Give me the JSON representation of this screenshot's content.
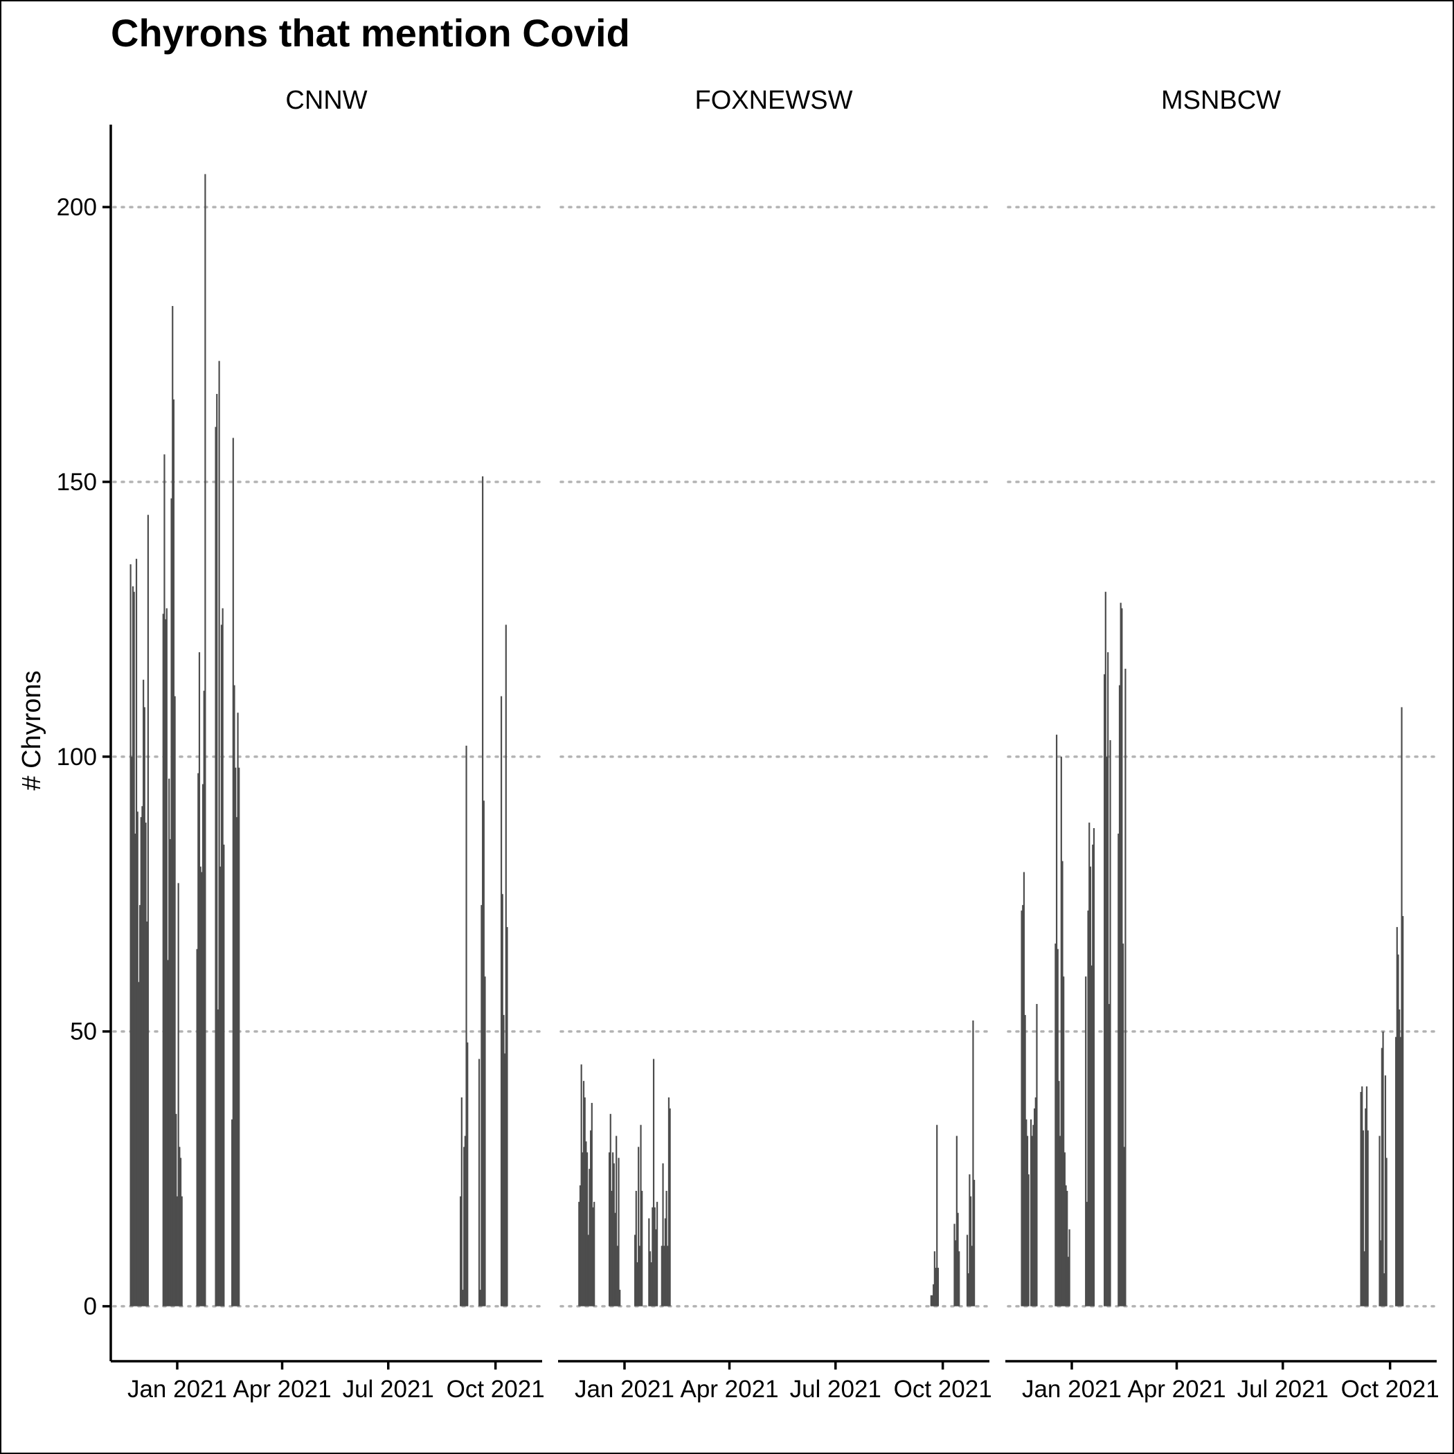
{
  "chart_data": {
    "type": "bar",
    "title": "Chyrons that mention Covid",
    "xlabel": "",
    "ylabel": "# Chyrons",
    "ylim": [
      -10,
      215
    ],
    "yticks": [
      0,
      50,
      100,
      150,
      200
    ],
    "xlim": [
      "2020-11-05",
      "2021-11-10"
    ],
    "xticks": [
      {
        "date": "2021-01-01",
        "label": "Jan 2021"
      },
      {
        "date": "2021-04-01",
        "label": "Apr 2021"
      },
      {
        "date": "2021-07-01",
        "label": "Jul 2021"
      },
      {
        "date": "2021-10-01",
        "label": "Oct 2021"
      }
    ],
    "grid": "horizontal dotted",
    "legend": "none",
    "bar_color": "#4d4d4d",
    "series": [
      {
        "name": "CNNW",
        "data": [
          [
            "2020-11-22",
            135
          ],
          [
            "2020-11-23",
            100
          ],
          [
            "2020-11-24",
            131
          ],
          [
            "2020-11-25",
            130
          ],
          [
            "2020-11-26",
            86
          ],
          [
            "2020-11-27",
            136
          ],
          [
            "2020-11-28",
            90
          ],
          [
            "2020-11-29",
            59
          ],
          [
            "2020-11-30",
            73
          ],
          [
            "2020-12-01",
            89
          ],
          [
            "2020-12-02",
            91
          ],
          [
            "2020-12-03",
            114
          ],
          [
            "2020-12-04",
            109
          ],
          [
            "2020-12-05",
            88
          ],
          [
            "2020-12-06",
            70
          ],
          [
            "2020-12-07",
            144
          ],
          [
            "2020-12-20",
            126
          ],
          [
            "2020-12-21",
            155
          ],
          [
            "2020-12-22",
            125
          ],
          [
            "2020-12-23",
            127
          ],
          [
            "2020-12-24",
            63
          ],
          [
            "2020-12-25",
            96
          ],
          [
            "2020-12-26",
            85
          ],
          [
            "2020-12-27",
            147
          ],
          [
            "2020-12-28",
            182
          ],
          [
            "2020-12-29",
            165
          ],
          [
            "2020-12-30",
            111
          ],
          [
            "2020-12-31",
            35
          ],
          [
            "2021-01-01",
            20
          ],
          [
            "2021-01-02",
            77
          ],
          [
            "2021-01-03",
            29
          ],
          [
            "2021-01-04",
            27
          ],
          [
            "2021-01-05",
            20
          ],
          [
            "2021-01-18",
            65
          ],
          [
            "2021-01-19",
            97
          ],
          [
            "2021-01-20",
            119
          ],
          [
            "2021-01-21",
            80
          ],
          [
            "2021-01-22",
            79
          ],
          [
            "2021-01-23",
            95
          ],
          [
            "2021-01-24",
            112
          ],
          [
            "2021-01-25",
            206
          ],
          [
            "2021-02-03",
            160
          ],
          [
            "2021-02-04",
            166
          ],
          [
            "2021-02-05",
            54
          ],
          [
            "2021-02-06",
            172
          ],
          [
            "2021-02-07",
            80
          ],
          [
            "2021-02-08",
            124
          ],
          [
            "2021-02-09",
            127
          ],
          [
            "2021-02-10",
            84
          ],
          [
            "2021-02-17",
            34
          ],
          [
            "2021-02-18",
            158
          ],
          [
            "2021-02-19",
            113
          ],
          [
            "2021-02-20",
            98
          ],
          [
            "2021-02-21",
            89
          ],
          [
            "2021-02-22",
            108
          ],
          [
            "2021-02-23",
            98
          ],
          [
            "2021-09-01",
            20
          ],
          [
            "2021-09-02",
            38
          ],
          [
            "2021-09-03",
            3
          ],
          [
            "2021-09-04",
            29
          ],
          [
            "2021-09-05",
            31
          ],
          [
            "2021-09-06",
            102
          ],
          [
            "2021-09-07",
            48
          ],
          [
            "2021-09-17",
            45
          ],
          [
            "2021-09-18",
            3
          ],
          [
            "2021-09-19",
            73
          ],
          [
            "2021-09-20",
            151
          ],
          [
            "2021-09-21",
            92
          ],
          [
            "2021-09-22",
            60
          ],
          [
            "2021-10-06",
            111
          ],
          [
            "2021-10-07",
            75
          ],
          [
            "2021-10-08",
            53
          ],
          [
            "2021-10-09",
            46
          ],
          [
            "2021-10-10",
            124
          ],
          [
            "2021-10-11",
            69
          ]
        ]
      },
      {
        "name": "FOXNEWSW",
        "data": [
          [
            "2020-11-23",
            19
          ],
          [
            "2020-11-24",
            22
          ],
          [
            "2020-11-25",
            44
          ],
          [
            "2020-11-26",
            28
          ],
          [
            "2020-11-27",
            41
          ],
          [
            "2020-11-28",
            38
          ],
          [
            "2020-11-29",
            30
          ],
          [
            "2020-11-30",
            28
          ],
          [
            "2020-12-01",
            13
          ],
          [
            "2020-12-02",
            25
          ],
          [
            "2020-12-03",
            32
          ],
          [
            "2020-12-04",
            37
          ],
          [
            "2020-12-05",
            18
          ],
          [
            "2020-12-06",
            19
          ],
          [
            "2020-12-19",
            28
          ],
          [
            "2020-12-20",
            35
          ],
          [
            "2020-12-21",
            21
          ],
          [
            "2020-12-22",
            28
          ],
          [
            "2020-12-23",
            26
          ],
          [
            "2020-12-24",
            17
          ],
          [
            "2020-12-25",
            31
          ],
          [
            "2020-12-26",
            11
          ],
          [
            "2020-12-27",
            27
          ],
          [
            "2020-12-28",
            3
          ],
          [
            "2021-01-10",
            13
          ],
          [
            "2021-01-11",
            21
          ],
          [
            "2021-01-12",
            8
          ],
          [
            "2021-01-13",
            29
          ],
          [
            "2021-01-14",
            11
          ],
          [
            "2021-01-15",
            33
          ],
          [
            "2021-01-16",
            21
          ],
          [
            "2021-01-22",
            16
          ],
          [
            "2021-01-23",
            10
          ],
          [
            "2021-01-24",
            8
          ],
          [
            "2021-01-25",
            18
          ],
          [
            "2021-01-26",
            45
          ],
          [
            "2021-01-27",
            18
          ],
          [
            "2021-01-28",
            14
          ],
          [
            "2021-01-29",
            19
          ],
          [
            "2021-02-02",
            11
          ],
          [
            "2021-02-03",
            26
          ],
          [
            "2021-02-04",
            11
          ],
          [
            "2021-02-05",
            16
          ],
          [
            "2021-02-06",
            21
          ],
          [
            "2021-02-07",
            11
          ],
          [
            "2021-02-08",
            38
          ],
          [
            "2021-02-09",
            36
          ],
          [
            "2021-09-21",
            2
          ],
          [
            "2021-09-22",
            2
          ],
          [
            "2021-09-23",
            4
          ],
          [
            "2021-09-24",
            10
          ],
          [
            "2021-09-25",
            7
          ],
          [
            "2021-09-26",
            33
          ],
          [
            "2021-09-27",
            7
          ],
          [
            "2021-10-11",
            15
          ],
          [
            "2021-10-12",
            12
          ],
          [
            "2021-10-13",
            31
          ],
          [
            "2021-10-14",
            17
          ],
          [
            "2021-10-15",
            10
          ],
          [
            "2021-10-22",
            13
          ],
          [
            "2021-10-23",
            6
          ],
          [
            "2021-10-24",
            24
          ],
          [
            "2021-10-25",
            20
          ],
          [
            "2021-10-26",
            11
          ],
          [
            "2021-10-27",
            52
          ],
          [
            "2021-10-28",
            23
          ]
        ]
      },
      {
        "name": "MSNBCW",
        "data": [
          [
            "2020-11-19",
            72
          ],
          [
            "2020-11-20",
            73
          ],
          [
            "2020-11-21",
            79
          ],
          [
            "2020-11-22",
            53
          ],
          [
            "2020-11-23",
            34
          ],
          [
            "2020-11-24",
            31
          ],
          [
            "2020-11-25",
            24
          ],
          [
            "2020-11-27",
            34
          ],
          [
            "2020-11-28",
            31
          ],
          [
            "2020-11-29",
            33
          ],
          [
            "2020-11-30",
            36
          ],
          [
            "2020-12-01",
            38
          ],
          [
            "2020-12-02",
            55
          ],
          [
            "2020-12-18",
            66
          ],
          [
            "2020-12-19",
            104
          ],
          [
            "2020-12-20",
            65
          ],
          [
            "2020-12-21",
            41
          ],
          [
            "2020-12-22",
            31
          ],
          [
            "2020-12-23",
            100
          ],
          [
            "2020-12-24",
            81
          ],
          [
            "2020-12-25",
            60
          ],
          [
            "2020-12-26",
            28
          ],
          [
            "2020-12-27",
            22
          ],
          [
            "2020-12-28",
            21
          ],
          [
            "2020-12-29",
            9
          ],
          [
            "2020-12-30",
            14
          ],
          [
            "2021-01-13",
            60
          ],
          [
            "2021-01-14",
            19
          ],
          [
            "2021-01-15",
            72
          ],
          [
            "2021-01-16",
            88
          ],
          [
            "2021-01-17",
            80
          ],
          [
            "2021-01-18",
            62
          ],
          [
            "2021-01-19",
            84
          ],
          [
            "2021-01-20",
            87
          ],
          [
            "2021-01-29",
            115
          ],
          [
            "2021-01-30",
            130
          ],
          [
            "2021-01-31",
            100
          ],
          [
            "2021-02-01",
            119
          ],
          [
            "2021-02-02",
            55
          ],
          [
            "2021-02-03",
            103
          ],
          [
            "2021-02-10",
            86
          ],
          [
            "2021-02-11",
            113
          ],
          [
            "2021-02-12",
            128
          ],
          [
            "2021-02-13",
            127
          ],
          [
            "2021-02-14",
            66
          ],
          [
            "2021-02-15",
            29
          ],
          [
            "2021-02-16",
            116
          ],
          [
            "2021-09-06",
            39
          ],
          [
            "2021-09-07",
            40
          ],
          [
            "2021-09-08",
            32
          ],
          [
            "2021-09-09",
            10
          ],
          [
            "2021-09-10",
            36
          ],
          [
            "2021-09-11",
            40
          ],
          [
            "2021-09-12",
            32
          ],
          [
            "2021-09-22",
            31
          ],
          [
            "2021-09-23",
            12
          ],
          [
            "2021-09-24",
            47
          ],
          [
            "2021-09-25",
            50
          ],
          [
            "2021-09-26",
            6
          ],
          [
            "2021-09-27",
            42
          ],
          [
            "2021-09-28",
            27
          ],
          [
            "2021-10-06",
            49
          ],
          [
            "2021-10-07",
            69
          ],
          [
            "2021-10-08",
            64
          ],
          [
            "2021-10-09",
            54
          ],
          [
            "2021-10-10",
            49
          ],
          [
            "2021-10-11",
            109
          ],
          [
            "2021-10-12",
            71
          ]
        ]
      }
    ]
  }
}
